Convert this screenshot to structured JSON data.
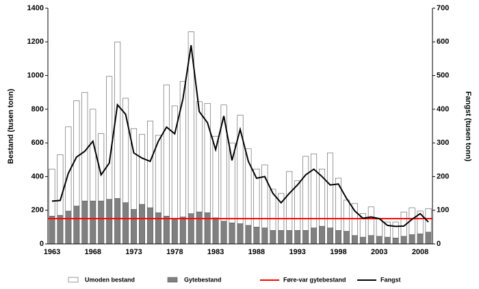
{
  "chart_data": {
    "type": "bar",
    "stacked": true,
    "categories": [
      "1963",
      null,
      null,
      null,
      null,
      "1968",
      null,
      null,
      null,
      null,
      "1973",
      null,
      null,
      null,
      null,
      "1978",
      null,
      null,
      null,
      null,
      "1983",
      null,
      null,
      null,
      null,
      "1988",
      null,
      null,
      null,
      null,
      "1993",
      null,
      null,
      null,
      null,
      "1998",
      null,
      null,
      null,
      null,
      "2003",
      null,
      null,
      null,
      null,
      "2008",
      null
    ],
    "series": [
      {
        "name": "Umoden bestand",
        "color": "#ffffff",
        "values": [
          280,
          360,
          500,
          625,
          645,
          545,
          400,
          730,
          930,
          620,
          480,
          415,
          515,
          460,
          780,
          670,
          805,
          1080,
          655,
          650,
          485,
          690,
          475,
          645,
          455,
          345,
          375,
          245,
          220,
          350,
          295,
          440,
          440,
          340,
          445,
          310,
          185,
          190,
          140,
          170,
          105,
          90,
          95,
          145,
          160,
          135,
          140
        ]
      },
      {
        "name": "Gytebestand",
        "color": "#808080",
        "values": [
          165,
          170,
          195,
          225,
          255,
          255,
          255,
          265,
          270,
          245,
          205,
          235,
          215,
          185,
          165,
          150,
          160,
          180,
          190,
          185,
          155,
          135,
          125,
          120,
          110,
          100,
          95,
          80,
          80,
          80,
          80,
          80,
          95,
          105,
          95,
          80,
          75,
          50,
          40,
          50,
          45,
          40,
          35,
          45,
          55,
          60,
          70
        ]
      },
      {
        "name": "Fangst",
        "color": "#000000",
        "type": "line",
        "axis": "y2",
        "values": [
          127,
          129,
          210,
          258,
          275,
          305,
          205,
          240,
          413,
          385,
          270,
          255,
          245,
          305,
          347,
          327,
          430,
          590,
          393,
          360,
          280,
          380,
          248,
          340,
          245,
          195,
          200,
          150,
          122,
          150,
          175,
          205,
          222,
          200,
          175,
          178,
          135,
          98,
          76,
          80,
          75,
          55,
          52,
          53,
          73,
          90,
          65
        ]
      }
    ],
    "reference_line": {
      "name": "Føre-var gytebestand",
      "value": 150,
      "color": "#ff0000"
    },
    "ylabel": "Bestand (tusen tonn)",
    "y2label": "Fangst (tusen tonn)",
    "ylim": [
      0,
      1400
    ],
    "yticks": [
      0,
      200,
      400,
      600,
      800,
      1000,
      1200,
      1400
    ],
    "y2lim": [
      0,
      700
    ],
    "y2ticks": [
      0,
      100,
      200,
      300,
      400,
      500,
      600,
      700
    ],
    "legend": "bottom"
  }
}
